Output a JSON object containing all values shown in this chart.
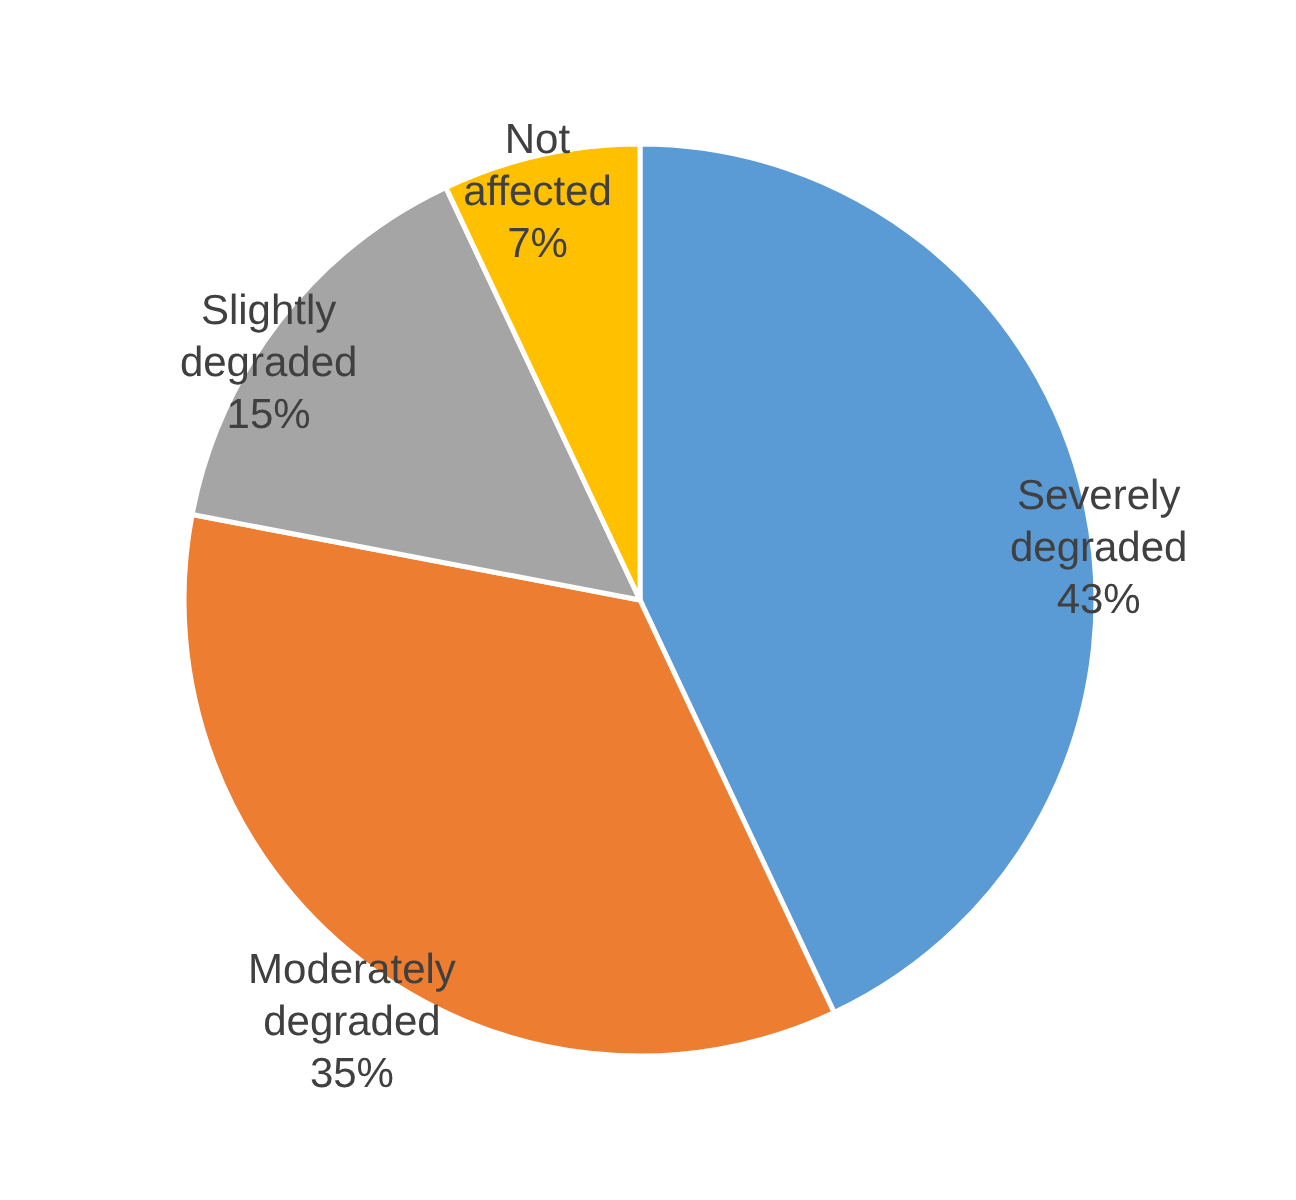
{
  "chart_data": {
    "type": "pie",
    "categories": [
      "Severely degraded",
      "Moderately degraded",
      "Slightly degraded",
      "Not affected"
    ],
    "values": [
      43,
      35,
      15,
      7
    ],
    "value_labels": [
      "43%",
      "35%",
      "15%",
      "7%"
    ],
    "colors": [
      "#5b9bd5",
      "#ed7d31",
      "#a5a5a5",
      "#ffc000"
    ]
  }
}
